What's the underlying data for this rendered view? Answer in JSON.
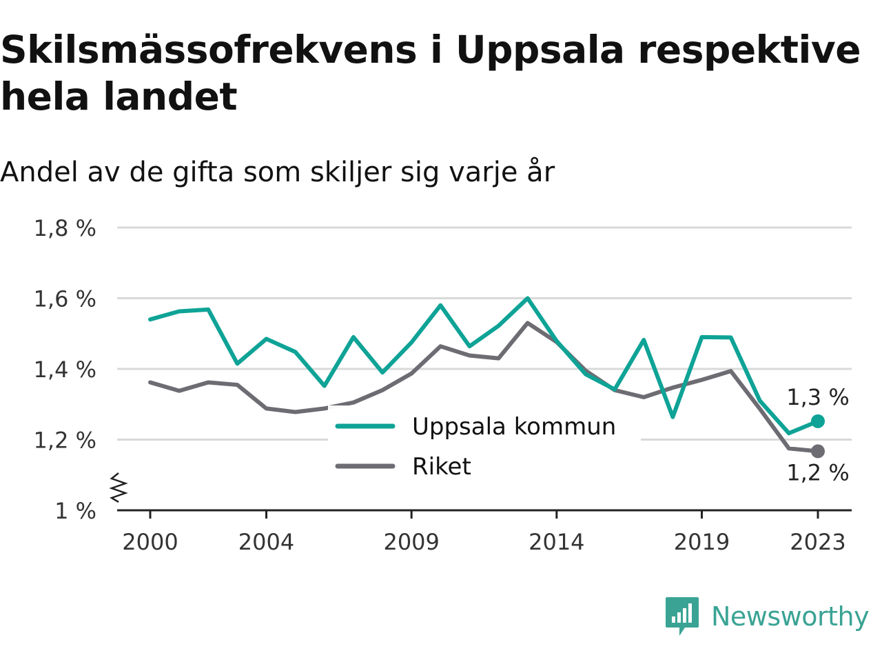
{
  "title": "Skilsmässofrekvens i Uppsala respektive hela landet",
  "subtitle": "Andel av de gifta som skiljer sig varje år",
  "brand": {
    "name": "Newsworthy",
    "icon": "newsworthy-logo-icon",
    "color": "#3aa394"
  },
  "chart_data": {
    "type": "line",
    "x": [
      2000,
      2001,
      2002,
      2003,
      2004,
      2005,
      2006,
      2007,
      2008,
      2009,
      2010,
      2011,
      2012,
      2013,
      2014,
      2015,
      2016,
      2017,
      2018,
      2019,
      2020,
      2021,
      2022,
      2023
    ],
    "xticks": [
      2000,
      2004,
      2009,
      2014,
      2019,
      2023
    ],
    "xtick_labels": [
      "2000",
      "2004",
      "2009",
      "2014",
      "2019",
      "2023"
    ],
    "yticks": [
      1.0,
      1.2,
      1.4,
      1.6,
      1.8
    ],
    "ytick_labels": [
      "1 %",
      "1,2 %",
      "1,4 %",
      "1,6 %",
      "1,8 %"
    ],
    "ylim": [
      1.0,
      1.8
    ],
    "xlabel": "",
    "ylabel": "",
    "grid": true,
    "axis_break": true,
    "legend_position": "center",
    "series": [
      {
        "name": "Uppsala kommun",
        "color": "#0ea396",
        "values": [
          1.54,
          1.563,
          1.568,
          1.415,
          1.485,
          1.448,
          1.352,
          1.49,
          1.39,
          1.475,
          1.58,
          1.464,
          1.522,
          1.6,
          1.479,
          1.385,
          1.342,
          1.482,
          1.264,
          1.49,
          1.489,
          1.31,
          1.218,
          1.252
        ],
        "end_label": "1,3 %"
      },
      {
        "name": "Riket",
        "color": "#6e6c73",
        "values": [
          1.362,
          1.338,
          1.362,
          1.355,
          1.288,
          1.278,
          1.288,
          1.305,
          1.34,
          1.387,
          1.464,
          1.438,
          1.43,
          1.53,
          1.476,
          1.395,
          1.34,
          1.32,
          1.347,
          1.369,
          1.394,
          1.287,
          1.175,
          1.167
        ],
        "end_label": "1,2 %"
      }
    ]
  }
}
